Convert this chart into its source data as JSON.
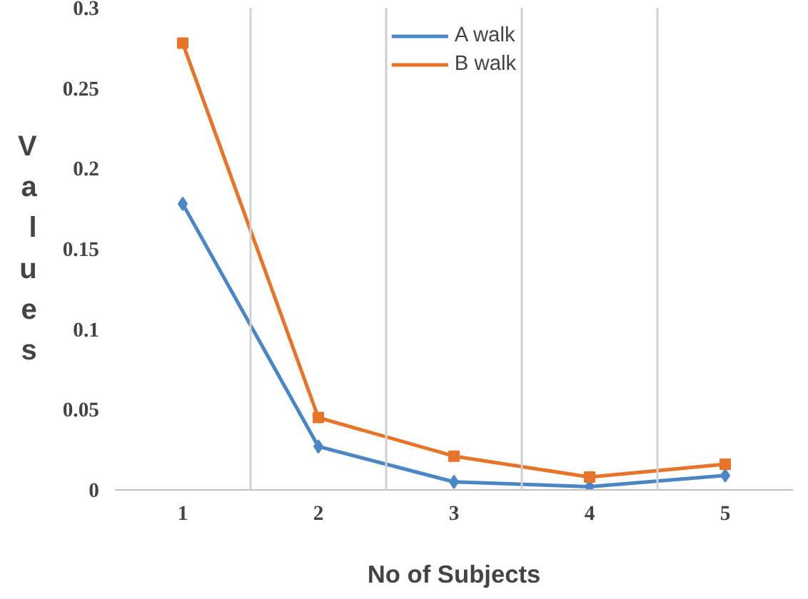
{
  "chart_data": {
    "type": "line",
    "xlabel": "No of Subjects",
    "ylabel": "Values",
    "categories": [
      "1",
      "2",
      "3",
      "4",
      "5"
    ],
    "series": [
      {
        "name": "A walk",
        "color": "#4a86c5",
        "marker": "diamond",
        "values": [
          0.178,
          0.027,
          0.005,
          0.002,
          0.009
        ]
      },
      {
        "name": "B walk",
        "color": "#e8742a",
        "marker": "square",
        "values": [
          0.278,
          0.045,
          0.021,
          0.008,
          0.016
        ]
      }
    ],
    "ylim": [
      0,
      0.3
    ],
    "yticks": [
      0,
      0.05,
      0.1,
      0.15,
      0.2,
      0.25,
      0.3
    ],
    "grid": "x",
    "legend": "top",
    "line_style": "solid"
  }
}
